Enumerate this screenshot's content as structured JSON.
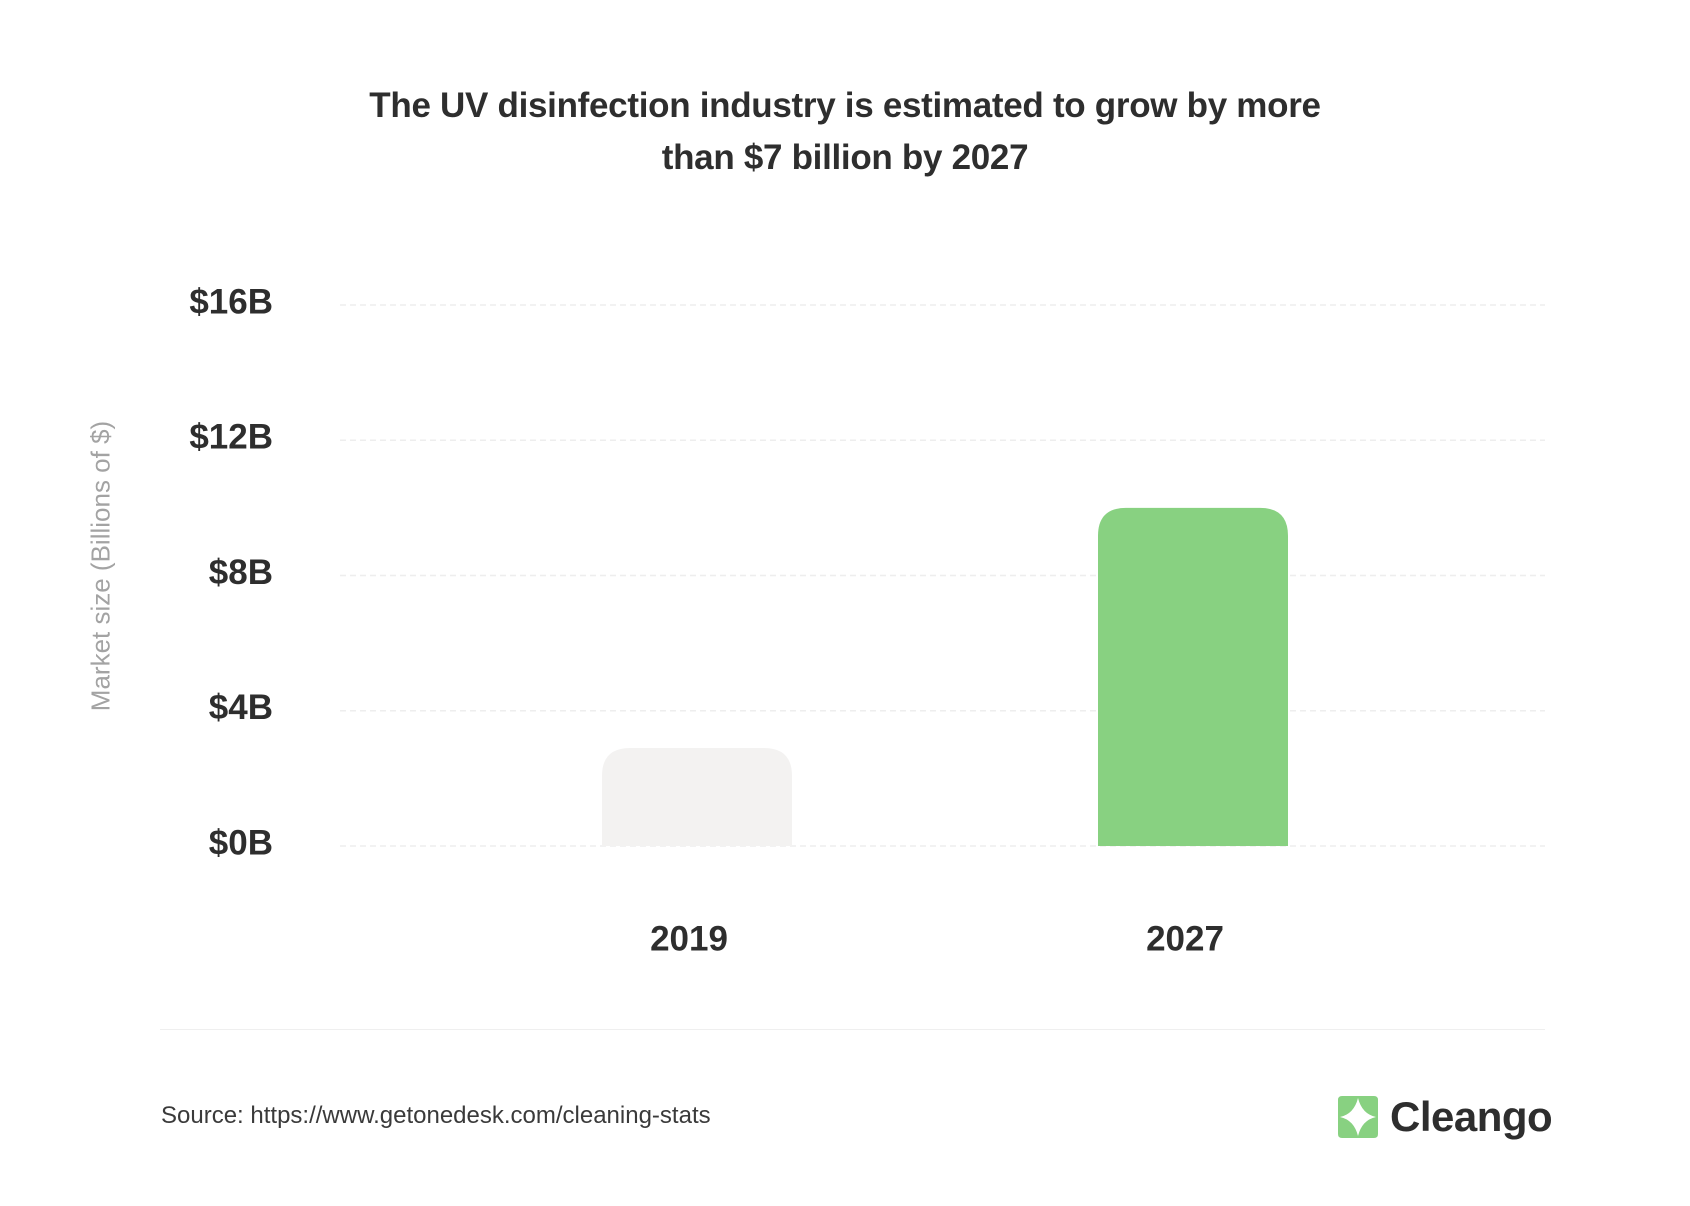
{
  "chart_data": {
    "type": "bar",
    "title": "The UV disinfection industry is estimated to grow by more than $7 billion by 2027",
    "title_lines": [
      "The UV disinfection industry is estimated to grow by more",
      "than $7 billion by 2027"
    ],
    "ylabel": "Market size (Billions of $)",
    "xlabel": "",
    "categories": [
      "2019",
      "2027"
    ],
    "values": [
      2.9,
      10.0
    ],
    "bar_colors": [
      "#f3f2f1",
      "#88d181"
    ],
    "ylim": [
      0,
      16
    ],
    "yticks": [
      0,
      4,
      8,
      12,
      16
    ],
    "ytick_labels": [
      "$0B",
      "$4B",
      "$8B",
      "$12B",
      "$16B"
    ],
    "grid": true,
    "legend": "none"
  },
  "footer": {
    "source": "Source: https://www.getonedesk.com/cleaning-stats",
    "brand": "Cleango",
    "brand_color": "#88d181"
  }
}
